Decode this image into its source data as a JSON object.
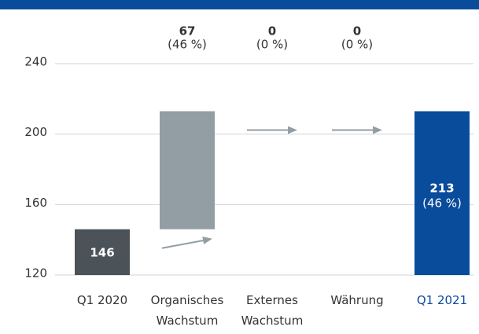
{
  "chart_data": {
    "type": "waterfall",
    "categories": [
      "Q1 2020",
      "Organisches Wachstum",
      "Externes Wachstum",
      "Währung",
      "Q1 2021"
    ],
    "values": [
      146,
      67,
      0,
      0,
      213
    ],
    "kinds": [
      "total",
      "delta",
      "delta",
      "delta",
      "total"
    ],
    "share_labels": [
      null,
      "(46 %)",
      "(0 %)",
      "(0 %)",
      "(46 %)"
    ],
    "colors": [
      "#4b5358",
      "#939ea4",
      "#939ea4",
      "#939ea4",
      "#0a4c9c"
    ],
    "category_label_colors": [
      "#333333",
      "#333333",
      "#333333",
      "#333333",
      "#0a4c9c"
    ],
    "ylim": [
      120,
      240
    ],
    "yticks": [
      120,
      160,
      200,
      240
    ],
    "grid": true
  }
}
